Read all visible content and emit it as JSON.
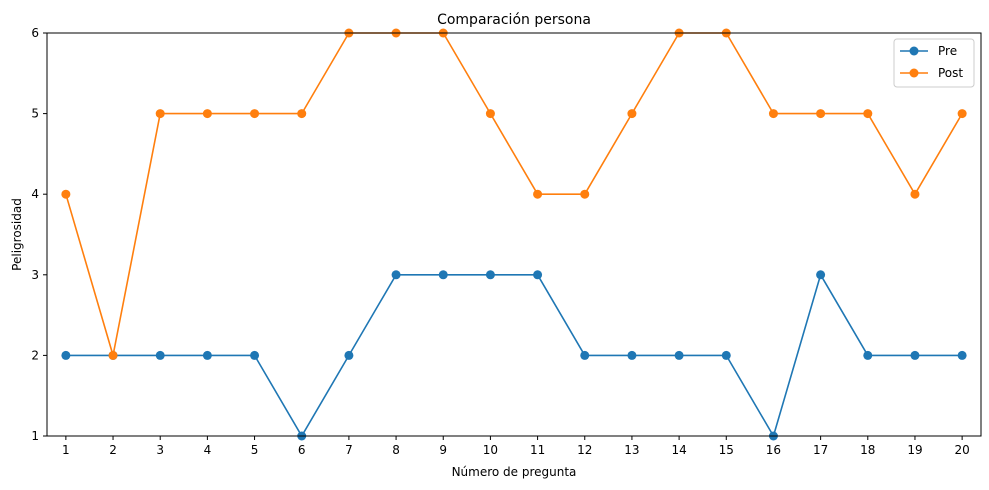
{
  "chart_data": {
    "type": "line",
    "title": "Comparación persona",
    "xlabel": "Número de pregunta",
    "ylabel": "Peligrosidad",
    "x": [
      1,
      2,
      3,
      4,
      5,
      6,
      7,
      8,
      9,
      10,
      11,
      12,
      13,
      14,
      15,
      16,
      17,
      18,
      19,
      20
    ],
    "xlim": [
      0.6,
      20.4
    ],
    "ylim": [
      1,
      6
    ],
    "yticks": [
      1,
      2,
      3,
      4,
      5,
      6
    ],
    "grid": false,
    "legend_position": "top-right",
    "series": [
      {
        "name": "Pre",
        "color": "#1f77b4",
        "marker": "circle",
        "values": [
          2,
          2,
          2,
          2,
          2,
          1,
          2,
          3,
          3,
          3,
          3,
          2,
          2,
          2,
          2,
          1,
          3,
          2,
          2,
          2
        ]
      },
      {
        "name": "Post",
        "color": "#ff7f0e",
        "marker": "circle",
        "values": [
          4,
          2,
          5,
          5,
          5,
          5,
          6,
          6,
          6,
          5,
          4,
          4,
          5,
          6,
          6,
          5,
          5,
          5,
          4,
          5
        ]
      }
    ]
  }
}
